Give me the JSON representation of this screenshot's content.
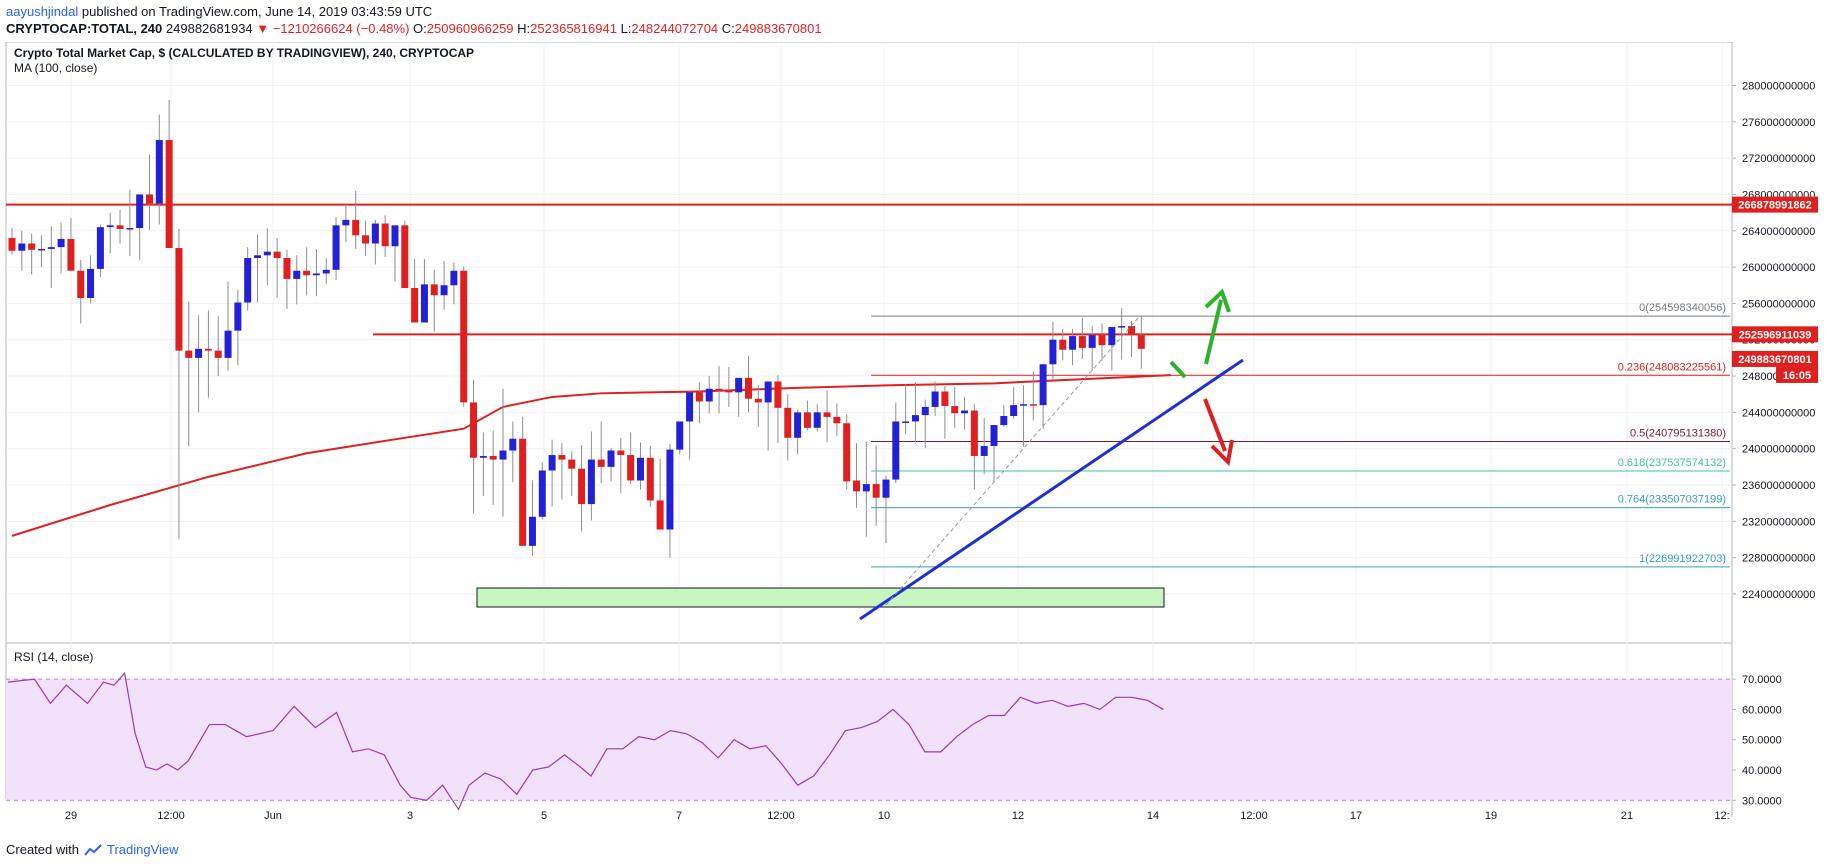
{
  "header": {
    "author": "aayushjindal",
    "published_text": "published on TradingView.com, June 14, 2019 03:43:59 UTC",
    "symbol": "CRYPTOCAP:TOTAL, 240",
    "last": "249882681934",
    "change_arrow": "▼",
    "change": "−1210266624 (−0.48%)",
    "o_label": "O:",
    "o_value": "250960966259",
    "h_label": "H:",
    "h_value": "252365816941",
    "l_label": "L:",
    "l_value": "248244072704",
    "c_label": "C:",
    "c_value": "249883670801"
  },
  "legend": {
    "title": "Crypto Total Market Cap, $ (CALCULATED BY TRADINGVIEW), 240, CRYPTOCAP",
    "ma": "MA (100, close)",
    "rsi": "RSI (14, close)"
  },
  "footer": {
    "created_with": "Created with",
    "brand": "TradingView",
    "logo_icon": "tradingview-cloud-icon"
  },
  "colors": {
    "up": "#2321d6",
    "down": "#e0201f",
    "ma": "#e0201f",
    "trendline": "#1e2fd6",
    "support_box_fill": "#c8f5c0",
    "arrow_up": "#2bb32b",
    "arrow_down": "#e0201f",
    "rsi_band": "#f1e1fb",
    "rsi_line": "#9c3bb0"
  },
  "chart_data": [
    {
      "type": "candlestick",
      "title": "Crypto Total Market Cap, $ (CALCULATED BY TRADINGVIEW), 240, CRYPTOCAP",
      "x_tick_labels": [
        "29",
        "12:00",
        "Jun",
        "3",
        "5",
        "7",
        "12:00",
        "10",
        "12",
        "14",
        "12:00",
        "17",
        "19",
        "21",
        "12:"
      ],
      "y_tick_labels": [
        "280000000000",
        "276000000000",
        "272000000000",
        "268000000000",
        "264000000000",
        "260000000000",
        "256000000000",
        "252000000000",
        "248000000000",
        "244000000000",
        "240000000000",
        "236000000000",
        "232000000000",
        "228000000000",
        "224000000000"
      ],
      "ylim": [
        223000000000,
        281500000000
      ],
      "candles": [
        [
          263.2,
          264.3,
          261.4,
          261.8
        ],
        [
          261.8,
          264.0,
          259.6,
          262.6
        ],
        [
          262.6,
          263.7,
          259.2,
          261.9
        ],
        [
          261.9,
          263.5,
          260.0,
          262.0
        ],
        [
          262.0,
          264.5,
          257.7,
          262.2
        ],
        [
          262.2,
          264.9,
          259.3,
          263.1
        ],
        [
          263.1,
          265.4,
          259.7,
          259.6
        ],
        [
          259.6,
          260.8,
          253.8,
          256.6
        ],
        [
          256.6,
          261.3,
          256.0,
          259.8
        ],
        [
          259.8,
          264.7,
          258.9,
          264.4
        ],
        [
          264.4,
          266.0,
          261.5,
          264.6
        ],
        [
          264.6,
          266.3,
          262.6,
          264.2
        ],
        [
          264.2,
          268.5,
          261.2,
          264.3
        ],
        [
          264.3,
          267.8,
          260.8,
          268.0
        ],
        [
          268.0,
          272.4,
          264.1,
          267.0
        ],
        [
          267.0,
          276.8,
          264.7,
          274.0
        ],
        [
          274.0,
          278.4,
          265.0,
          262.1
        ],
        [
          262.1,
          264.2,
          230.1,
          250.8
        ],
        [
          250.8,
          256.2,
          240.3,
          250.0
        ],
        [
          250.0,
          254.7,
          244.0,
          251.0
        ],
        [
          251.0,
          255.2,
          245.6,
          250.8
        ],
        [
          250.8,
          254.6,
          248.0,
          250.0
        ],
        [
          250.0,
          258.4,
          248.6,
          253.0
        ],
        [
          253.0,
          257.5,
          249.2,
          256.1
        ],
        [
          256.1,
          262.2,
          255.2,
          261.0
        ],
        [
          261.0,
          263.6,
          256.1,
          261.3
        ],
        [
          261.3,
          264.3,
          258.0,
          261.7
        ],
        [
          261.7,
          263.2,
          256.6,
          261.0
        ],
        [
          261.0,
          261.9,
          255.4,
          258.7
        ],
        [
          258.7,
          261.3,
          255.9,
          259.6
        ],
        [
          259.6,
          262.2,
          256.9,
          259.1
        ],
        [
          259.1,
          262.0,
          256.8,
          259.3
        ],
        [
          259.3,
          261.0,
          258.1,
          259.7
        ],
        [
          259.7,
          265.5,
          258.6,
          264.6
        ],
        [
          264.6,
          266.9,
          262.8,
          265.2
        ],
        [
          265.2,
          268.4,
          262.0,
          263.5
        ],
        [
          263.5,
          265.1,
          261.2,
          262.6
        ],
        [
          262.6,
          265.2,
          260.3,
          264.8
        ],
        [
          264.8,
          265.7,
          261.1,
          262.3
        ],
        [
          262.3,
          264.5,
          258.4,
          264.6
        ],
        [
          264.6,
          265.1,
          259.0,
          257.7
        ],
        [
          257.7,
          260.9,
          256.0,
          253.9
        ],
        [
          253.9,
          260.9,
          255.4,
          258.1
        ],
        [
          258.1,
          259.7,
          252.9,
          256.9
        ],
        [
          256.9,
          260.7,
          255.3,
          258.0
        ],
        [
          258.0,
          260.5,
          255.9,
          259.6
        ],
        [
          259.6,
          260.1,
          244.6,
          245.1
        ],
        [
          245.1,
          247.6,
          232.9,
          239.0
        ],
        [
          239.0,
          241.8,
          234.8,
          239.2
        ],
        [
          239.2,
          242.0,
          233.8,
          238.8
        ],
        [
          238.8,
          246.6,
          232.5,
          239.8
        ],
        [
          239.8,
          243.0,
          236.3,
          241.1
        ],
        [
          241.1,
          243.5,
          230.8,
          229.3
        ],
        [
          229.3,
          236.5,
          228.2,
          232.5
        ],
        [
          232.5,
          238.5,
          232.2,
          237.6
        ],
        [
          237.6,
          241.0,
          233.6,
          239.3
        ],
        [
          239.3,
          240.6,
          234.4,
          238.8
        ],
        [
          238.8,
          239.7,
          234.8,
          237.8
        ],
        [
          237.8,
          240.4,
          230.9,
          233.9
        ],
        [
          233.9,
          241.9,
          232.1,
          238.8
        ],
        [
          238.8,
          243.0,
          236.2,
          238.0
        ],
        [
          238.0,
          240.1,
          236.4,
          239.8
        ],
        [
          239.8,
          241.2,
          235.1,
          239.3
        ],
        [
          239.3,
          241.8,
          236.1,
          236.5
        ],
        [
          236.5,
          240.7,
          235.5,
          239.0
        ],
        [
          239.0,
          240.3,
          233.6,
          234.3
        ],
        [
          234.3,
          238.9,
          232.1,
          231.1
        ],
        [
          231.1,
          240.5,
          228.0,
          239.9
        ],
        [
          239.9,
          242.4,
          239.4,
          243.0
        ],
        [
          243.0,
          246.3,
          238.8,
          246.2
        ],
        [
          246.2,
          247.3,
          242.8,
          245.2
        ],
        [
          245.2,
          248.0,
          243.9,
          246.6
        ],
        [
          246.6,
          249.1,
          243.9,
          246.4
        ],
        [
          246.4,
          249.0,
          244.6,
          246.2
        ],
        [
          246.2,
          247.4,
          243.5,
          247.8
        ],
        [
          247.8,
          250.2,
          244.0,
          245.5
        ],
        [
          245.5,
          247.0,
          242.4,
          245.1
        ],
        [
          245.1,
          246.4,
          239.8,
          247.4
        ],
        [
          247.4,
          248.1,
          240.6,
          244.5
        ],
        [
          244.5,
          246.0,
          238.7,
          241.2
        ],
        [
          241.2,
          244.3,
          239.4,
          244.0
        ],
        [
          244.0,
          245.3,
          242.0,
          242.3
        ],
        [
          242.3,
          244.9,
          241.9,
          244.0
        ],
        [
          244.0,
          246.4,
          240.7,
          243.5
        ],
        [
          243.5,
          245.0,
          241.4,
          242.8
        ],
        [
          242.8,
          243.8,
          235.5,
          236.4
        ],
        [
          236.5,
          240.6,
          233.5,
          235.3
        ],
        [
          235.3,
          240.8,
          230.3,
          236.1
        ],
        [
          236.1,
          240.3,
          231.5,
          234.6
        ],
        [
          234.6,
          237.0,
          229.6,
          236.6
        ],
        [
          236.6,
          245.1,
          236.2,
          243.0
        ],
        [
          243.0,
          247.1,
          241.6,
          243.0
        ],
        [
          243.0,
          247.3,
          240.7,
          243.7
        ],
        [
          243.7,
          245.4,
          240.1,
          244.6
        ],
        [
          244.6,
          247.4,
          243.6,
          246.3
        ],
        [
          246.3,
          246.9,
          241.1,
          244.7
        ],
        [
          244.7,
          246.8,
          242.3,
          243.9
        ],
        [
          243.9,
          245.7,
          242.1,
          244.2
        ],
        [
          244.2,
          244.9,
          235.5,
          239.2
        ],
        [
          239.2,
          243.4,
          237.2,
          240.3
        ],
        [
          240.3,
          241.7,
          236.3,
          242.6
        ],
        [
          242.6,
          244.8,
          242.4,
          243.6
        ],
        [
          243.6,
          246.8,
          243.3,
          244.8
        ],
        [
          244.8,
          247.0,
          240.2,
          244.9
        ],
        [
          244.9,
          248.5,
          243.1,
          244.8
        ],
        [
          244.8,
          247.6,
          242.2,
          249.3
        ],
        [
          249.3,
          254.0,
          247.6,
          252.0
        ],
        [
          252.0,
          253.2,
          249.7,
          250.9
        ],
        [
          250.9,
          253.2,
          249.2,
          252.4
        ],
        [
          252.4,
          254.4,
          249.9,
          251.1
        ],
        [
          251.1,
          253.5,
          248.6,
          252.5
        ],
        [
          252.5,
          253.8,
          249.7,
          251.4
        ],
        [
          251.4,
          253.0,
          248.6,
          253.4
        ],
        [
          253.4,
          255.5,
          249.8,
          253.5
        ],
        [
          253.5,
          254.1,
          250.1,
          252.5
        ],
        [
          252.5,
          254.7,
          248.8,
          251.0
        ]
      ],
      "ma100": [
        [
          0,
          230.4
        ],
        [
          10,
          233.8
        ],
        [
          20,
          236.9
        ],
        [
          30,
          239.5
        ],
        [
          40,
          241.2
        ],
        [
          46,
          242.2
        ],
        [
          50,
          244.6
        ],
        [
          55,
          245.7
        ],
        [
          60,
          246.1
        ],
        [
          70,
          246.3
        ],
        [
          80,
          246.7
        ],
        [
          90,
          247.0
        ],
        [
          100,
          247.2
        ],
        [
          110,
          247.7
        ],
        [
          118,
          248.1
        ]
      ],
      "levels": {
        "resistance_high": 266878991862,
        "resistance": 252596911039,
        "current_price": 249883670801,
        "countdown": "16:05"
      },
      "fibonacci": [
        {
          "label": "0(254598340056)",
          "value": 254598340056,
          "color": "#787b86"
        },
        {
          "label": "0.236(248083225561)",
          "value": 248083225561,
          "color": "#e0201f"
        },
        {
          "label": "0.5(240795131380)",
          "value": 240795131380,
          "color": "#7a1a2b"
        },
        {
          "label": "0.618(237537574132)",
          "value": 237537574132,
          "color": "#3ec7a3"
        },
        {
          "label": "0.764(233507037199)",
          "value": 233507037199,
          "color": "#3a9bc4"
        },
        {
          "label": "1(226991922703)",
          "value": 226991922703,
          "color": "#3a9bc4"
        }
      ],
      "price_labels": [
        "266878991862",
        "252596911039",
        "249883670801",
        "16:05"
      ]
    },
    {
      "type": "line",
      "title": "RSI (14, close)",
      "y_tick_labels": [
        "70.0000",
        "60.0000",
        "50.0000",
        "40.0000",
        "30.0000"
      ],
      "ylim": [
        24,
        74
      ],
      "band": [
        30,
        70
      ],
      "values": [
        [
          0,
          69
        ],
        [
          5,
          70
        ],
        [
          8,
          62
        ],
        [
          11,
          68
        ],
        [
          15,
          62
        ],
        [
          18,
          69
        ],
        [
          20,
          68
        ],
        [
          22,
          72
        ],
        [
          24,
          52
        ],
        [
          26,
          41
        ],
        [
          28,
          40
        ],
        [
          30,
          42
        ],
        [
          32,
          40
        ],
        [
          34,
          43
        ],
        [
          38,
          55
        ],
        [
          41,
          55
        ],
        [
          45,
          51
        ],
        [
          50,
          53
        ],
        [
          54,
          61
        ],
        [
          58,
          54
        ],
        [
          62,
          59
        ],
        [
          65,
          46
        ],
        [
          68,
          47
        ],
        [
          71,
          45
        ],
        [
          74,
          35
        ],
        [
          76,
          31
        ],
        [
          79,
          30
        ],
        [
          82,
          35
        ],
        [
          85,
          27
        ],
        [
          87,
          35
        ],
        [
          90,
          39
        ],
        [
          93,
          37
        ],
        [
          96,
          32
        ],
        [
          99,
          40
        ],
        [
          102,
          41
        ],
        [
          105,
          45
        ],
        [
          108,
          41
        ],
        [
          110,
          38
        ],
        [
          113,
          47
        ],
        [
          116,
          47
        ],
        [
          119,
          51
        ],
        [
          122,
          50
        ],
        [
          125,
          53
        ],
        [
          128,
          52
        ],
        [
          131,
          49
        ],
        [
          134,
          44
        ],
        [
          137,
          50
        ],
        [
          140,
          47
        ],
        [
          143,
          48
        ],
        [
          146,
          42
        ],
        [
          149,
          35
        ],
        [
          152,
          38
        ],
        [
          155,
          45
        ],
        [
          158,
          53
        ],
        [
          161,
          54
        ],
        [
          164,
          56
        ],
        [
          167,
          60
        ],
        [
          170,
          55
        ],
        [
          173,
          46
        ],
        [
          176,
          46
        ],
        [
          179,
          51
        ],
        [
          182,
          55
        ],
        [
          185,
          58
        ],
        [
          188,
          58
        ],
        [
          191,
          64
        ],
        [
          194,
          62
        ],
        [
          197,
          63
        ],
        [
          200,
          61
        ],
        [
          203,
          62
        ],
        [
          206,
          60
        ],
        [
          209,
          64
        ],
        [
          212,
          64
        ],
        [
          215,
          63
        ],
        [
          218,
          60
        ]
      ]
    }
  ]
}
